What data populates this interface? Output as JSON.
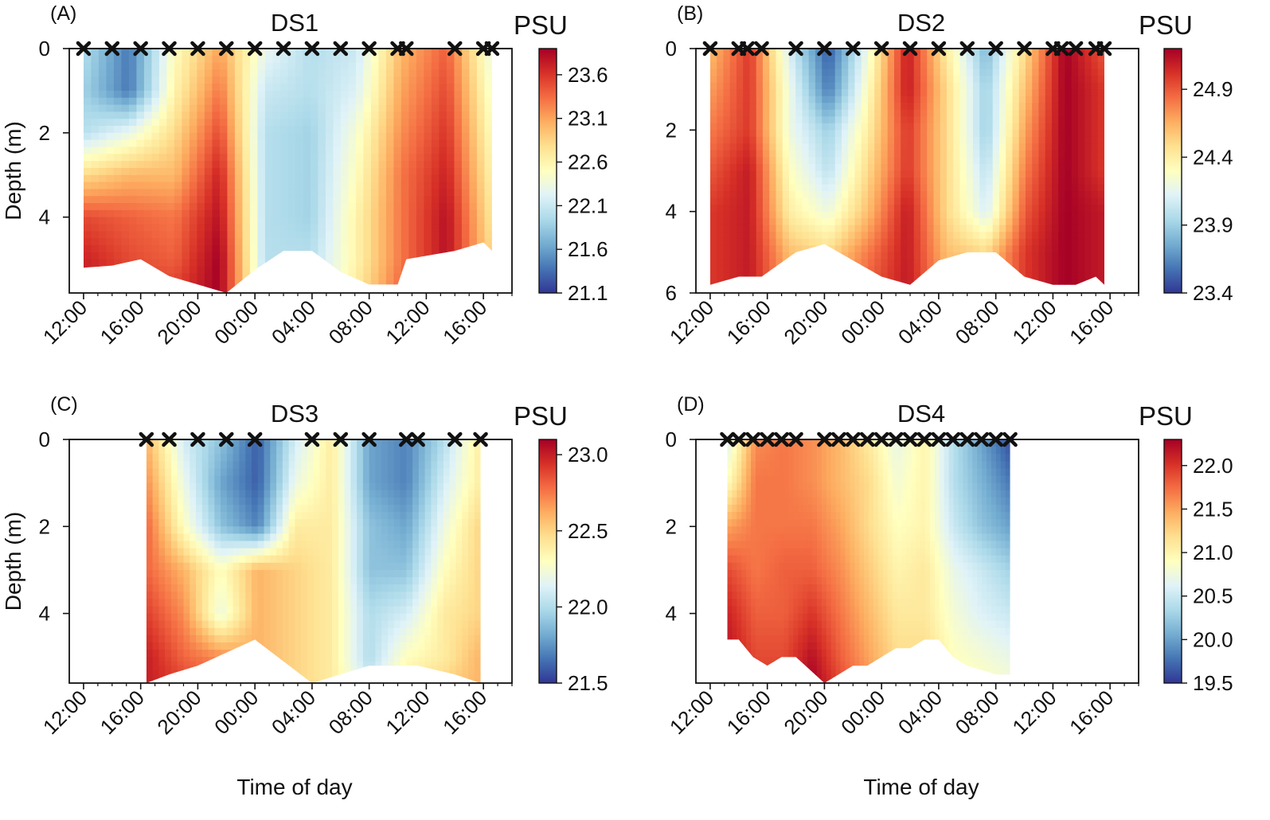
{
  "figure": {
    "xlabel": "Time of day",
    "ylabel": "Depth (m)",
    "unit": "PSU",
    "colormap": [
      "#313695",
      "#4575b4",
      "#74add1",
      "#abd9e9",
      "#e0f3f8",
      "#ffffbf",
      "#fee090",
      "#fdae61",
      "#f46d43",
      "#d73027",
      "#a50026"
    ]
  },
  "chart_data": [
    {
      "type": "heatmap",
      "letter": "(A)",
      "title": "DS1",
      "xlabel": "",
      "ylabel": "Depth (m)",
      "x_unit": "hours since 12:00",
      "x_ticks": [
        0,
        4,
        8,
        12,
        16,
        20,
        24,
        28
      ],
      "x_tick_labels": [
        "12:00",
        "16:00",
        "20:00",
        "00:00",
        "04:00",
        "08:00",
        "12:00",
        "16:00"
      ],
      "xlim": [
        -1,
        30
      ],
      "ylim": [
        5.8,
        0
      ],
      "y_ticks": [
        0,
        2,
        4
      ],
      "y_tick_labels": [
        "0",
        "2",
        "4"
      ],
      "colorbar_ticks": [
        21.1,
        21.6,
        22.1,
        22.6,
        23.1,
        23.6
      ],
      "colorbar_tick_labels": [
        "21.1",
        "21.6",
        "22.1",
        "22.6",
        "23.1",
        "23.6"
      ],
      "clim": [
        21.1,
        23.9
      ],
      "cast_times": [
        0,
        2,
        4,
        6,
        8,
        10,
        12,
        14,
        16,
        18,
        20,
        22,
        22.6,
        26,
        28,
        28.6
      ],
      "bottom_depths": [
        5.2,
        5.15,
        5.0,
        5.4,
        5.6,
        5.8,
        5.25,
        4.8,
        4.8,
        5.3,
        5.6,
        5.6,
        5.0,
        4.8,
        4.6,
        4.8
      ],
      "depths": [
        0,
        1,
        2,
        3,
        4,
        5,
        6
      ],
      "salinity": [
        [
          22.0,
          21.4,
          22.5,
          23.1,
          22.3,
          22.0,
          22.1,
          23.0,
          23.4,
          22.3
        ],
        [
          21.9,
          21.4,
          22.6,
          23.3,
          22.1,
          22.0,
          22.2,
          23.1,
          23.5,
          22.4
        ],
        [
          22.0,
          22.3,
          22.8,
          23.5,
          22.0,
          21.9,
          22.4,
          23.2,
          23.6,
          22.5
        ],
        [
          22.8,
          23.0,
          23.0,
          23.7,
          22.0,
          21.9,
          22.5,
          23.3,
          23.7,
          22.6
        ],
        [
          23.5,
          23.4,
          23.3,
          23.8,
          22.0,
          21.9,
          22.6,
          23.3,
          23.8,
          22.7
        ],
        [
          23.7,
          23.5,
          23.4,
          23.9,
          22.0,
          22.0,
          22.6,
          23.3,
          23.8,
          22.8
        ],
        [
          23.8,
          23.6,
          23.6,
          23.9,
          22.1,
          22.0,
          22.7,
          23.4,
          23.8,
          22.8
        ]
      ]
    },
    {
      "type": "heatmap",
      "letter": "(B)",
      "title": "DS2",
      "xlabel": "",
      "ylabel": "",
      "x_unit": "hours since 12:00",
      "x_ticks": [
        0,
        4,
        8,
        12,
        16,
        20,
        24,
        28
      ],
      "x_tick_labels": [
        "12:00",
        "16:00",
        "20:00",
        "00:00",
        "04:00",
        "08:00",
        "12:00",
        "16:00"
      ],
      "xlim": [
        -1,
        30
      ],
      "ylim": [
        6,
        0
      ],
      "y_ticks": [
        0,
        2,
        4,
        6
      ],
      "y_tick_labels": [
        "0",
        "2",
        "4",
        "6"
      ],
      "colorbar_ticks": [
        23.4,
        23.9,
        24.4,
        24.9
      ],
      "colorbar_tick_labels": [
        "23.4",
        "23.9",
        "24.4",
        "24.9"
      ],
      "clim": [
        23.4,
        25.2
      ],
      "cast_times": [
        0,
        2,
        2.6,
        3.6,
        6,
        8,
        10,
        12,
        14,
        16,
        18,
        20,
        22,
        24,
        24.6,
        25.6,
        27,
        27.6
      ],
      "bottom_depths": [
        5.8,
        5.6,
        5.6,
        5.6,
        5.0,
        4.8,
        5.2,
        5.6,
        5.8,
        5.2,
        5.0,
        5.0,
        5.6,
        5.8,
        5.8,
        5.8,
        5.6,
        5.8
      ],
      "depths": [
        0,
        1,
        2,
        3,
        4,
        5,
        6
      ],
      "salinity": [
        [
          24.6,
          25.0,
          24.1,
          23.5,
          24.2,
          25.1,
          24.4,
          23.8,
          24.5,
          25.2,
          24.9
        ],
        [
          24.7,
          25.0,
          24.2,
          23.6,
          24.3,
          25.1,
          24.5,
          23.9,
          24.6,
          25.2,
          25.0
        ],
        [
          24.8,
          25.0,
          24.2,
          23.9,
          24.4,
          25.0,
          24.5,
          23.9,
          24.7,
          25.2,
          25.0
        ],
        [
          24.9,
          25.1,
          24.3,
          24.0,
          24.5,
          25.0,
          24.5,
          24.0,
          24.8,
          25.2,
          25.0
        ],
        [
          25.0,
          25.1,
          24.4,
          24.2,
          24.6,
          25.1,
          24.5,
          24.1,
          24.9,
          25.2,
          25.1
        ],
        [
          25.0,
          25.1,
          24.6,
          24.5,
          24.8,
          25.1,
          24.6,
          24.5,
          25.0,
          25.2,
          25.1
        ],
        [
          25.0,
          25.1,
          24.7,
          24.6,
          24.9,
          25.1,
          24.7,
          24.6,
          25.0,
          25.2,
          25.1
        ]
      ]
    },
    {
      "type": "heatmap",
      "letter": "(C)",
      "title": "DS3",
      "xlabel": "Time of day",
      "ylabel": "Depth (m)",
      "x_unit": "hours since 12:00",
      "x_ticks": [
        0,
        4,
        8,
        12,
        16,
        20,
        24,
        28
      ],
      "x_tick_labels": [
        "12:00",
        "16:00",
        "20:00",
        "00:00",
        "04:00",
        "08:00",
        "12:00",
        "16:00"
      ],
      "xlim": [
        -1,
        30
      ],
      "ylim": [
        5.6,
        0
      ],
      "y_ticks": [
        0,
        2,
        4
      ],
      "y_tick_labels": [
        "0",
        "2",
        "4"
      ],
      "colorbar_ticks": [
        21.5,
        22.0,
        22.5,
        23.0
      ],
      "colorbar_tick_labels": [
        "21.5",
        "22.0",
        "22.5",
        "23.0"
      ],
      "clim": [
        21.5,
        23.1
      ],
      "cast_times": [
        4.4,
        6,
        8,
        10,
        12,
        16,
        18,
        20,
        22.6,
        23.4,
        26,
        27.8
      ],
      "bottom_depths": [
        5.6,
        5.4,
        5.2,
        4.9,
        4.6,
        5.6,
        5.4,
        5.2,
        5.2,
        5.2,
        5.4,
        5.6
      ],
      "depths": [
        0,
        1,
        2,
        3,
        4,
        5,
        5.6
      ],
      "salinity": [
        [
          22.6,
          22.1,
          21.9,
          21.6,
          22.1,
          22.4,
          21.8,
          21.7,
          22.0,
          22.4
        ],
        [
          22.7,
          22.2,
          21.8,
          21.6,
          22.2,
          22.4,
          21.8,
          21.7,
          22.1,
          22.4
        ],
        [
          22.8,
          22.3,
          21.9,
          21.7,
          22.4,
          22.4,
          21.9,
          21.8,
          22.2,
          22.5
        ],
        [
          22.8,
          22.6,
          22.3,
          22.6,
          22.5,
          22.4,
          21.9,
          21.9,
          22.3,
          22.5
        ],
        [
          22.9,
          22.7,
          22.2,
          22.6,
          22.5,
          22.4,
          22.0,
          22.1,
          22.4,
          22.5
        ],
        [
          23.0,
          22.8,
          22.7,
          22.6,
          22.5,
          22.4,
          22.0,
          22.3,
          22.4,
          22.6
        ],
        [
          23.0,
          22.9,
          22.8,
          22.6,
          22.5,
          22.4,
          22.1,
          22.4,
          22.5,
          22.6
        ]
      ]
    },
    {
      "type": "heatmap",
      "letter": "(D)",
      "title": "DS4",
      "xlabel": "Time of day",
      "ylabel": "",
      "x_unit": "hours since 12:00",
      "x_ticks": [
        0,
        4,
        8,
        12,
        16,
        20,
        24,
        28
      ],
      "x_tick_labels": [
        "12:00",
        "16:00",
        "20:00",
        "00:00",
        "04:00",
        "08:00",
        "12:00",
        "16:00"
      ],
      "xlim": [
        -1,
        30
      ],
      "ylim": [
        5.6,
        0
      ],
      "y_ticks": [
        0,
        2,
        4
      ],
      "y_tick_labels": [
        "0",
        "2",
        "4"
      ],
      "colorbar_ticks": [
        19.5,
        20.0,
        20.5,
        21.0,
        21.5,
        22.0
      ],
      "colorbar_tick_labels": [
        "19.5",
        "20.0",
        "20.5",
        "21.0",
        "21.5",
        "22.0"
      ],
      "clim": [
        19.5,
        22.3
      ],
      "cast_times": [
        1.2,
        2,
        3,
        4,
        5,
        6,
        8,
        9,
        10,
        11,
        12,
        13,
        14,
        15,
        16,
        17,
        18,
        19,
        20,
        21
      ],
      "bottom_depths": [
        4.6,
        4.6,
        5.0,
        5.2,
        5.0,
        5.0,
        5.6,
        5.4,
        5.2,
        5.2,
        5.0,
        4.8,
        4.8,
        4.6,
        4.6,
        5.0,
        5.2,
        5.3,
        5.4,
        5.4
      ],
      "depths": [
        0,
        1,
        2,
        3,
        4,
        5,
        5.6
      ],
      "salinity": [
        [
          20.6,
          21.6,
          21.7,
          21.6,
          21.4,
          21.1,
          20.7,
          21.0,
          20.4,
          20.0,
          19.6
        ],
        [
          20.9,
          21.7,
          21.7,
          21.6,
          21.4,
          21.2,
          20.8,
          21.0,
          20.4,
          20.1,
          19.8
        ],
        [
          21.5,
          21.7,
          21.7,
          21.7,
          21.5,
          21.2,
          20.9,
          21.0,
          20.5,
          20.2,
          20.0
        ],
        [
          21.9,
          21.7,
          21.8,
          21.8,
          21.6,
          21.3,
          21.0,
          21.1,
          20.7,
          20.5,
          20.3
        ],
        [
          22.1,
          21.8,
          21.8,
          22.0,
          21.7,
          21.4,
          21.1,
          21.1,
          20.8,
          20.6,
          20.5
        ],
        [
          22.2,
          21.9,
          21.9,
          22.2,
          21.8,
          21.5,
          21.2,
          21.2,
          20.9,
          20.8,
          20.7
        ],
        [
          22.3,
          22.0,
          22.0,
          22.3,
          21.9,
          21.6,
          21.3,
          21.2,
          21.0,
          20.9,
          20.8
        ]
      ]
    }
  ]
}
